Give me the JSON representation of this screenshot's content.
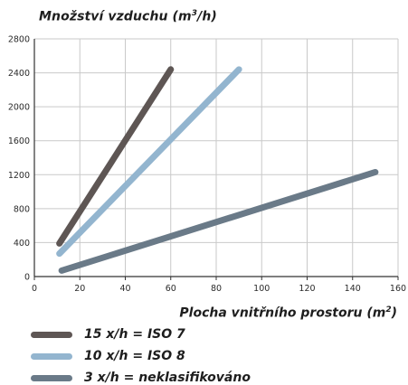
{
  "chart_data": {
    "type": "line",
    "ylabel_prefix": "Množství vzduchu (m",
    "ylabel_sup": "3",
    "ylabel_suffix": "/h)",
    "xlabel_prefix": "Plocha vnitřního prostoru (m",
    "xlabel_sup": "2",
    "xlabel_suffix": ")",
    "xlim": [
      0,
      160
    ],
    "ylim": [
      0,
      2800
    ],
    "xticks": [
      0,
      20,
      40,
      60,
      80,
      100,
      120,
      140,
      160
    ],
    "yticks": [
      0,
      400,
      800,
      1200,
      1600,
      2000,
      2400,
      2800
    ],
    "grid": true,
    "legend_position": "bottom-left",
    "series": [
      {
        "name": "15 x/h = ISO 7",
        "color": "#5e5654",
        "points": [
          [
            11,
            390
          ],
          [
            60,
            2440
          ]
        ]
      },
      {
        "name": "10 x/h = ISO 8",
        "color": "#93b5cf",
        "points": [
          [
            11,
            270
          ],
          [
            90,
            2440
          ]
        ]
      },
      {
        "name": "3 x/h = neklasifikováno",
        "color": "#6a7a88",
        "points": [
          [
            12,
            70
          ],
          [
            150,
            1230
          ]
        ]
      }
    ]
  }
}
